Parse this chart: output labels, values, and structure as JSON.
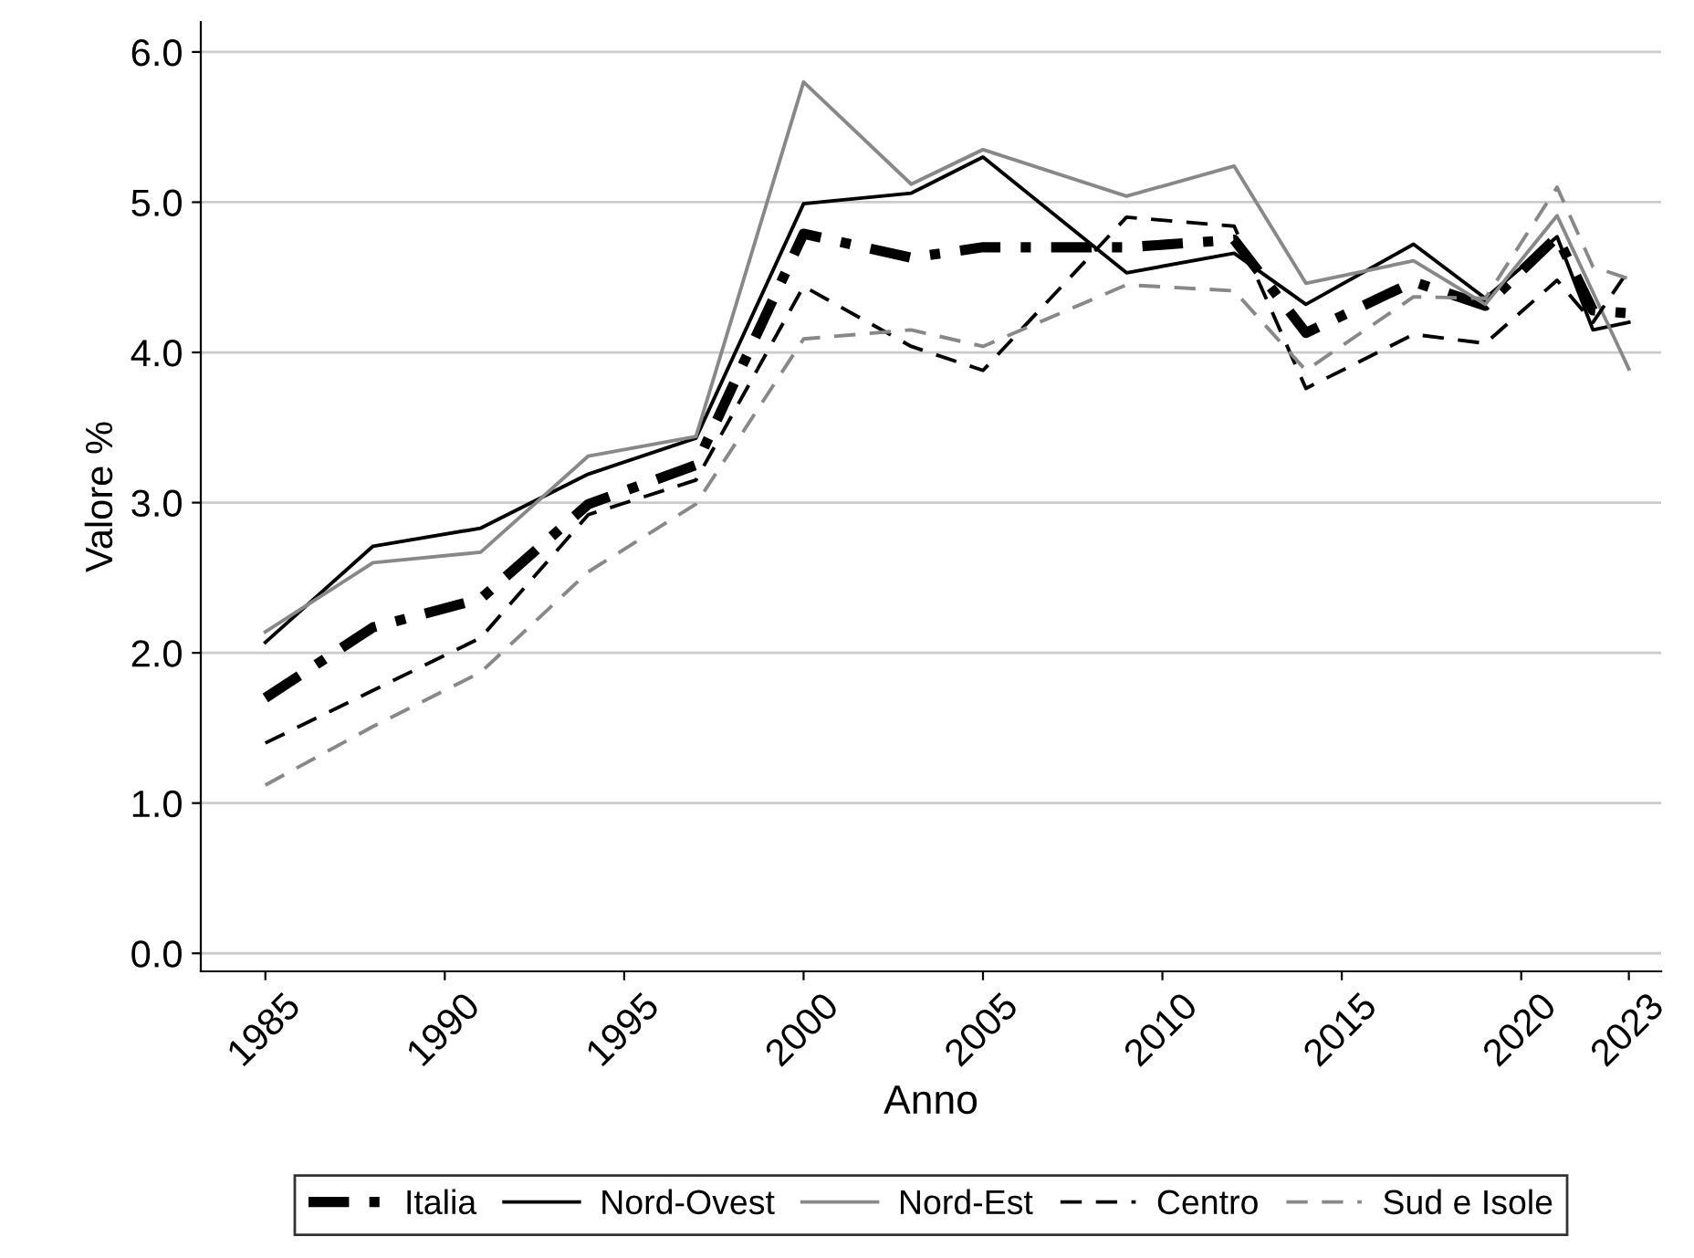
{
  "chart_data": {
    "type": "line",
    "xlabel": "Anno",
    "ylabel": "Valore %",
    "x": [
      1985,
      1988,
      1991,
      1994,
      1997,
      2000,
      2003,
      2005,
      2009,
      2012,
      2014,
      2017,
      2019,
      2021,
      2022,
      2023
    ],
    "series": [
      {
        "name": "Italia",
        "color": "#000000",
        "line_style": "dashdot",
        "values": [
          1.7,
          2.17,
          2.36,
          2.99,
          3.25,
          4.79,
          4.63,
          4.7,
          4.7,
          4.75,
          4.13,
          4.47,
          4.31,
          4.77,
          4.28,
          4.26
        ]
      },
      {
        "name": "Nord-Ovest",
        "color": "#000000",
        "line_style": "solid",
        "values": [
          2.07,
          2.71,
          2.83,
          3.19,
          3.43,
          4.99,
          5.06,
          5.3,
          4.53,
          4.66,
          4.32,
          4.72,
          4.36,
          4.77,
          4.15,
          4.2
        ]
      },
      {
        "name": "Nord-Est",
        "color": "#888888",
        "line_style": "solid",
        "values": [
          2.14,
          2.6,
          2.67,
          3.31,
          3.44,
          5.8,
          5.12,
          5.35,
          5.04,
          5.24,
          4.46,
          4.61,
          4.32,
          4.91,
          4.4,
          3.89
        ]
      },
      {
        "name": "Centro",
        "color": "#000000",
        "line_style": "dashed",
        "values": [
          1.4,
          1.75,
          2.1,
          2.92,
          3.15,
          4.44,
          4.04,
          3.88,
          4.9,
          4.84,
          3.76,
          4.12,
          4.06,
          4.48,
          4.2,
          4.55
        ]
      },
      {
        "name": "Sud e Isole",
        "color": "#888888",
        "line_style": "dashed",
        "values": [
          1.12,
          1.51,
          1.87,
          2.54,
          2.99,
          4.09,
          4.15,
          4.04,
          4.45,
          4.41,
          3.88,
          4.37,
          4.36,
          5.1,
          4.57,
          4.49
        ]
      }
    ],
    "xlim": [
      1983.2,
      2023.9
    ],
    "xticks": [
      1985,
      1990,
      1995,
      2000,
      2005,
      2010,
      2015,
      2020,
      2023
    ],
    "ylim": [
      -0.12,
      6.2
    ],
    "yticks": [
      {
        "value": 0,
        "label": "0.0"
      },
      {
        "value": 1,
        "label": "1.0"
      },
      {
        "value": 2,
        "label": "2.0"
      },
      {
        "value": 3,
        "label": "3.0"
      },
      {
        "value": 4,
        "label": "4.0"
      },
      {
        "value": 5,
        "label": "5.0"
      },
      {
        "value": 6,
        "label": "6.0"
      }
    ],
    "grid": "y",
    "legend": "bottom",
    "marker": "none"
  }
}
